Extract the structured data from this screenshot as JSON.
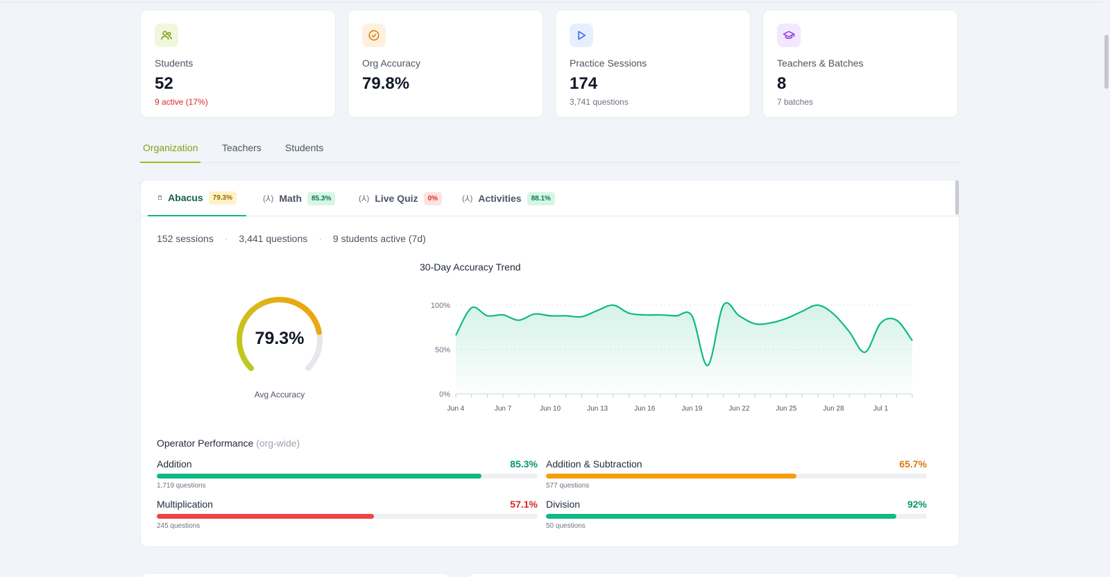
{
  "cards": [
    {
      "label": "Students",
      "value": "52",
      "sub": "9 active (17%)",
      "icon": "users-icon",
      "icon_bg": "#f0f7dc",
      "icon_color": "#7a9a10",
      "sub_color": "#dc2626"
    },
    {
      "label": "Org Accuracy",
      "value": "79.8%",
      "sub": "",
      "icon": "check-circle-icon",
      "icon_bg": "#fdf1de",
      "icon_color": "#d97706"
    },
    {
      "label": "Practice Sessions",
      "value": "174",
      "sub": "3,741 questions",
      "icon": "play-icon",
      "icon_bg": "#e7efff",
      "icon_color": "#2563eb"
    },
    {
      "label": "Teachers & Batches",
      "value": "8",
      "sub": "7 batches",
      "icon": "graduation-cap-icon",
      "icon_bg": "#f2e8ff",
      "icon_color": "#9333ea"
    }
  ],
  "tabs": [
    {
      "label": "Organization",
      "active": true
    },
    {
      "label": "Teachers",
      "active": false
    },
    {
      "label": "Students",
      "active": false
    }
  ],
  "subtabs": [
    {
      "label": "Abacus",
      "badge": "79.3%",
      "icon": "calculator-icon",
      "badge_bg": "#fdf3c7",
      "badge_color": "#a16207",
      "active": true
    },
    {
      "label": "Math",
      "badge": "85.3%",
      "icon": "function-icon",
      "badge_bg": "#d7f5e7",
      "badge_color": "#047857",
      "active": false
    },
    {
      "label": "Live Quiz",
      "badge": "0%",
      "icon": "function-icon",
      "badge_bg": "#fde2e2",
      "badge_color": "#dc2626",
      "active": false
    },
    {
      "label": "Activities",
      "badge": "88.1%",
      "icon": "function-icon",
      "badge_bg": "#d7f5e7",
      "badge_color": "#047857",
      "active": false
    }
  ],
  "stats": {
    "sessions": "152 sessions",
    "questions": "3,441 questions",
    "active": "9 students active (7d)"
  },
  "gauge": {
    "value": "79.3%",
    "fraction": 0.793,
    "label": "Avg Accuracy"
  },
  "chart_data": {
    "type": "area",
    "title": "30-Day Accuracy Trend",
    "ylim": [
      0,
      100
    ],
    "y_ticks": [
      "0%",
      "50%",
      "100%"
    ],
    "x_tick_labels": [
      "Jun 4",
      "Jun 7",
      "Jun 10",
      "Jun 13",
      "Jun 16",
      "Jun 19",
      "Jun 22",
      "Jun 25",
      "Jun 28",
      "Jul 1"
    ],
    "x_tick_indices": [
      0,
      3,
      6,
      9,
      12,
      15,
      18,
      21,
      24,
      27
    ],
    "x_count": 30,
    "grid": true,
    "series": [
      {
        "values": [
          66,
          97,
          88,
          89,
          83,
          90,
          88,
          88,
          87,
          94,
          100,
          91,
          89,
          89,
          88,
          88,
          32,
          100,
          88,
          79,
          80,
          85,
          93,
          100,
          90,
          70,
          47,
          80,
          83,
          60
        ],
        "color": "#10b981"
      }
    ]
  },
  "operators": {
    "title": "Operator Performance",
    "subtitle": "(org-wide)",
    "items": [
      {
        "name": "Addition",
        "pct": "85.3%",
        "value": 85.3,
        "questions": "1,719 questions",
        "color": "#10b981",
        "text_color": "#059669"
      },
      {
        "name": "Addition & Subtraction",
        "pct": "65.7%",
        "value": 65.7,
        "questions": "577 questions",
        "color": "#f59e0b",
        "text_color": "#d97706"
      },
      {
        "name": "Multiplication",
        "pct": "57.1%",
        "value": 57.1,
        "questions": "245 questions",
        "color": "#ef4444",
        "text_color": "#dc2626"
      },
      {
        "name": "Division",
        "pct": "92%",
        "value": 92,
        "questions": "50 questions",
        "color": "#10b981",
        "text_color": "#059669"
      }
    ]
  }
}
